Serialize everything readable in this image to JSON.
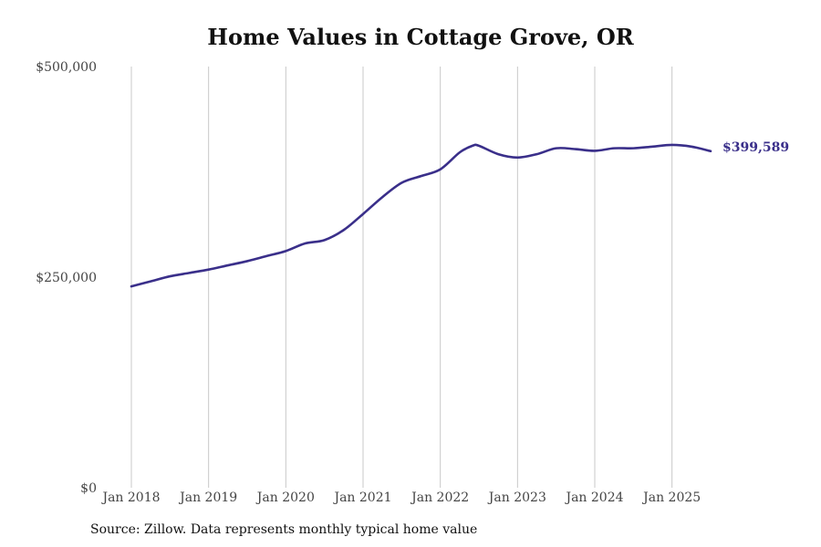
{
  "title": "Home Values in Cottage Grove, OR",
  "source": "Source: Zillow. Data represents monthly typical home value",
  "colors": {
    "line": "#3a2f8a",
    "grid": "#c8c8c8"
  },
  "chart_data": {
    "type": "line",
    "title": "Home Values in Cottage Grove, OR",
    "xlabel": "",
    "ylabel": "",
    "grid": "vertical",
    "ylim": [
      0,
      500000
    ],
    "xlim": [
      "2018-01",
      "2025-07"
    ],
    "y_ticks": [
      0,
      250000,
      500000
    ],
    "y_tick_labels": [
      "$0",
      "$250,000",
      "$500,000"
    ],
    "x_ticks": [
      "2018-01",
      "2019-01",
      "2020-01",
      "2021-01",
      "2022-01",
      "2023-01",
      "2024-01",
      "2025-01"
    ],
    "x_tick_labels": [
      "Jan 2018",
      "Jan 2019",
      "Jan 2020",
      "Jan 2021",
      "Jan 2022",
      "Jan 2023",
      "Jan 2024",
      "Jan 2025"
    ],
    "end_label": "$399,589",
    "series": [
      {
        "x": [
          "2018-01",
          "2018-04",
          "2018-07",
          "2018-10",
          "2019-01",
          "2019-04",
          "2019-07",
          "2019-10",
          "2020-01",
          "2020-04",
          "2020-07",
          "2020-10",
          "2021-01",
          "2021-04",
          "2021-07",
          "2021-10",
          "2022-01",
          "2022-04",
          "2022-06",
          "2022-07",
          "2022-10",
          "2023-01",
          "2023-04",
          "2023-07",
          "2023-10",
          "2024-01",
          "2024-04",
          "2024-07",
          "2024-10",
          "2025-01",
          "2025-04",
          "2025-07"
        ],
        "values": [
          239000,
          245000,
          251000,
          255000,
          259000,
          264000,
          269000,
          275000,
          281000,
          290000,
          294000,
          306000,
          325000,
          345000,
          362000,
          370000,
          378000,
          398000,
          406000,
          406000,
          396000,
          392000,
          396000,
          403000,
          402000,
          400000,
          403000,
          403000,
          405000,
          407000,
          405000,
          399589
        ]
      }
    ]
  }
}
